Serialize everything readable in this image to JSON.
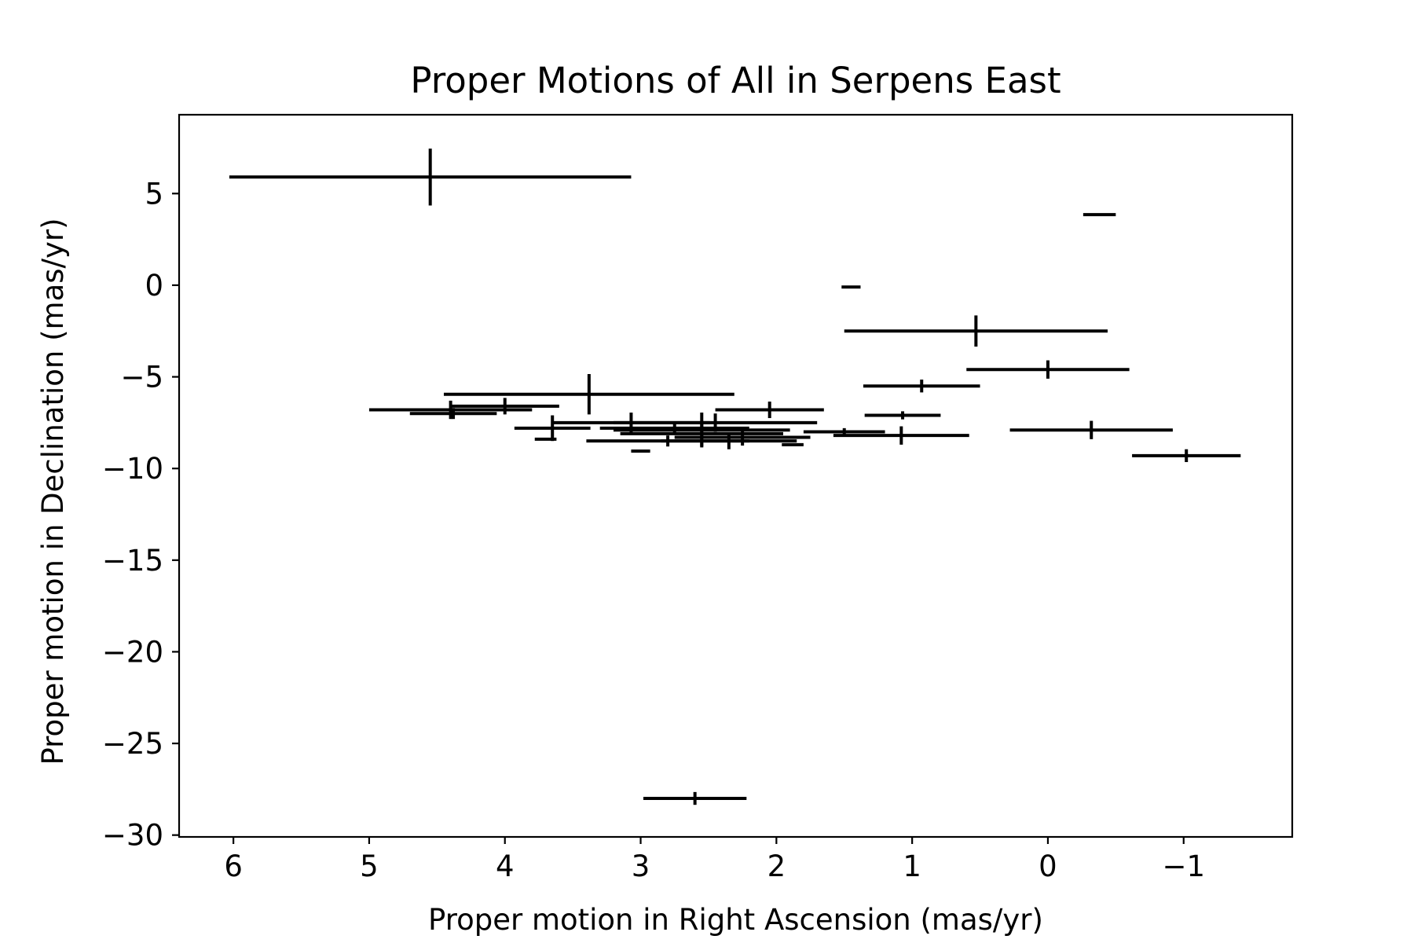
{
  "chart_data": {
    "type": "scatter",
    "title": "Proper Motions of All in Serpens East",
    "xlabel": "Proper motion in Right Ascension (mas/yr)",
    "ylabel": "Proper motion in Declination (mas/yr)",
    "xlim": [
      6.4,
      -1.8
    ],
    "ylim": [
      -30.1,
      9.3
    ],
    "x_axis_inverted": true,
    "xticks": [
      6,
      5,
      4,
      3,
      2,
      1,
      0,
      -1
    ],
    "xtick_labels": [
      "6",
      "5",
      "4",
      "3",
      "2",
      "1",
      "0",
      "−1"
    ],
    "yticks": [
      5,
      0,
      -5,
      -10,
      -15,
      -20,
      -25,
      -30
    ],
    "ytick_labels": [
      "5",
      "0",
      "−5",
      "−10",
      "−15",
      "−20",
      "−25",
      "−30"
    ],
    "grid": false,
    "legend": "none",
    "marker": "none (error bars only)",
    "color": "#000000",
    "series": [
      {
        "points": [
          {
            "x": 4.55,
            "y": 5.9,
            "xerr": 1.48,
            "yerr": 1.55
          },
          {
            "x": -0.38,
            "y": 3.85,
            "xerr": 0.12,
            "yerr": 0.05
          },
          {
            "x": 1.45,
            "y": -0.1,
            "xerr": 0.07,
            "yerr": 0.05
          },
          {
            "x": 0.53,
            "y": -2.5,
            "xerr": 0.97,
            "yerr": 0.85
          },
          {
            "x": 0.0,
            "y": -4.6,
            "xerr": 0.6,
            "yerr": 0.5
          },
          {
            "x": 0.93,
            "y": -5.5,
            "xerr": 0.43,
            "yerr": 0.35
          },
          {
            "x": 3.38,
            "y": -5.95,
            "xerr": 1.07,
            "yerr": 1.1
          },
          {
            "x": 4.4,
            "y": -6.8,
            "xerr": 0.6,
            "yerr": 0.5
          },
          {
            "x": 4.0,
            "y": -6.6,
            "xerr": 0.4,
            "yerr": 0.45
          },
          {
            "x": 4.38,
            "y": -7.0,
            "xerr": 0.32,
            "yerr": 0.3
          },
          {
            "x": 2.05,
            "y": -6.8,
            "xerr": 0.4,
            "yerr": 0.45
          },
          {
            "x": 1.07,
            "y": -7.1,
            "xerr": 0.28,
            "yerr": 0.22
          },
          {
            "x": 3.65,
            "y": -7.8,
            "xerr": 0.28,
            "yerr": 0.7
          },
          {
            "x": 3.07,
            "y": -7.5,
            "xerr": 0.58,
            "yerr": 0.55
          },
          {
            "x": 2.55,
            "y": -7.9,
            "xerr": 0.65,
            "yerr": 0.95
          },
          {
            "x": 2.55,
            "y": -8.1,
            "xerr": 0.6,
            "yerr": 0.7
          },
          {
            "x": 2.45,
            "y": -7.5,
            "xerr": 0.75,
            "yerr": 0.5
          },
          {
            "x": 2.75,
            "y": -7.8,
            "xerr": 0.55,
            "yerr": 0.35
          },
          {
            "x": 2.35,
            "y": -8.5,
            "xerr": 0.5,
            "yerr": 0.45
          },
          {
            "x": 2.25,
            "y": -8.3,
            "xerr": 0.5,
            "yerr": 0.45
          },
          {
            "x": 2.8,
            "y": -8.5,
            "xerr": 0.6,
            "yerr": 0.3
          },
          {
            "x": 1.5,
            "y": -8.0,
            "xerr": 0.3,
            "yerr": 0.2
          },
          {
            "x": 1.08,
            "y": -8.2,
            "xerr": 0.5,
            "yerr": 0.5
          },
          {
            "x": -0.32,
            "y": -7.9,
            "xerr": 0.6,
            "yerr": 0.5
          },
          {
            "x": -1.02,
            "y": -9.3,
            "xerr": 0.4,
            "yerr": 0.35
          },
          {
            "x": 3.0,
            "y": -9.05,
            "xerr": 0.07,
            "yerr": 0.05
          },
          {
            "x": 3.7,
            "y": -8.4,
            "xerr": 0.08,
            "yerr": 0.05
          },
          {
            "x": 1.88,
            "y": -8.7,
            "xerr": 0.08,
            "yerr": 0.05
          },
          {
            "x": 2.6,
            "y": -28.0,
            "xerr": 0.38,
            "yerr": 0.35
          }
        ]
      }
    ]
  }
}
